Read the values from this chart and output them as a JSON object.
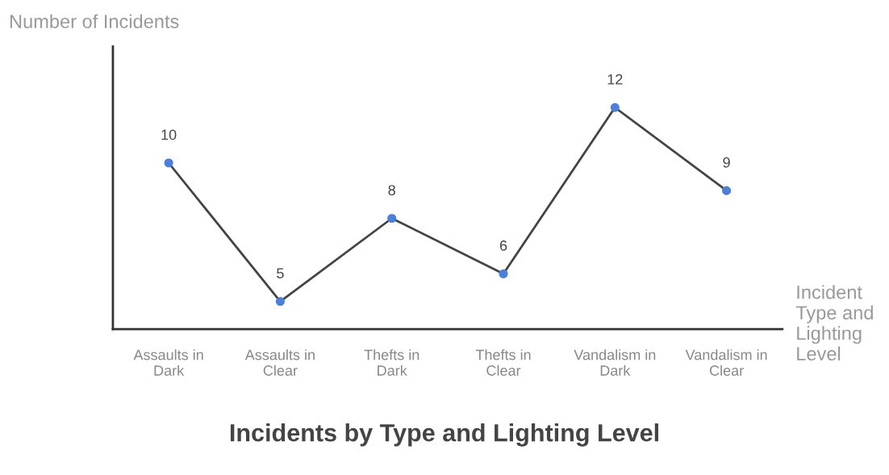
{
  "chart_data": {
    "type": "line",
    "title": "Incidents by Type and Lighting Level",
    "xlabel": "Incident Type and Lighting Level",
    "ylabel": "Number of Incidents",
    "categories": [
      "Assaults in Dark",
      "Assaults in Clear",
      "Thefts in Dark",
      "Thefts in Clear",
      "Vandalism in Dark",
      "Vandalism in Clear"
    ],
    "series": [
      {
        "color": "#444444",
        "values": [
          10,
          5,
          8,
          6,
          12,
          9
        ]
      }
    ],
    "ylim": [
      4,
      14.2
    ],
    "tick_labels": "x",
    "data_labels": true,
    "marker": "circle",
    "line_style": "solid",
    "grid": false,
    "legend": false
  }
}
